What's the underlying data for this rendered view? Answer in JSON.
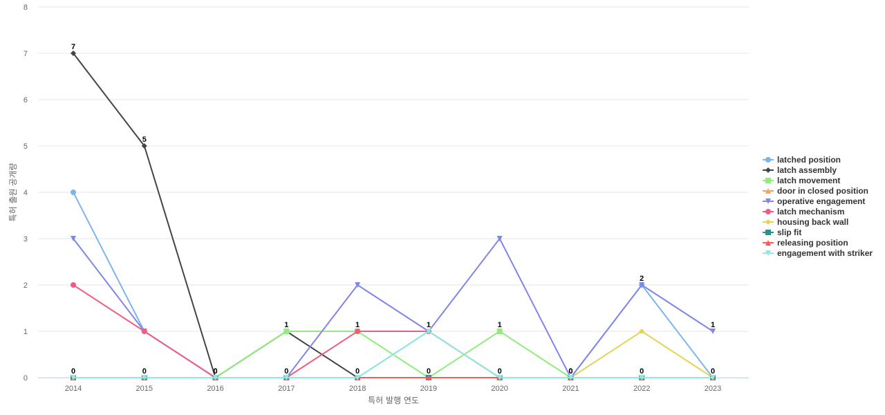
{
  "chart_data": {
    "type": "line",
    "title": "",
    "xlabel": "특허 발행 연도",
    "ylabel": "특허 출원 공개량",
    "x": [
      "2014",
      "2015",
      "2016",
      "2017",
      "2018",
      "2019",
      "2020",
      "2021",
      "2022",
      "2023"
    ],
    "ylim": [
      0,
      8
    ],
    "yticks": [
      0,
      1,
      2,
      3,
      4,
      5,
      6,
      7,
      8
    ],
    "grid": true,
    "legend_position": "right",
    "series": [
      {
        "name": "latched position",
        "color": "#7cb5ec",
        "marker": "circle",
        "values": [
          4,
          1,
          0,
          0,
          0,
          1,
          0,
          0,
          2,
          0
        ]
      },
      {
        "name": "latch assembly",
        "color": "#434348",
        "marker": "diamond",
        "values": [
          7,
          5,
          0,
          1,
          0,
          0,
          0,
          0,
          0,
          0
        ]
      },
      {
        "name": "latch movement",
        "color": "#90ed7d",
        "marker": "square",
        "values": [
          0,
          0,
          0,
          1,
          1,
          0,
          1,
          0,
          0,
          0
        ]
      },
      {
        "name": "door in closed position",
        "color": "#f7a35c",
        "marker": "triangle",
        "values": [
          0,
          0,
          0,
          0,
          0,
          0,
          0,
          0,
          0,
          0
        ]
      },
      {
        "name": "operative engagement",
        "color": "#8085e9",
        "marker": "triangle-down",
        "values": [
          3,
          1,
          0,
          0,
          2,
          1,
          3,
          0,
          2,
          1
        ]
      },
      {
        "name": "latch mechanism",
        "color": "#f15c80",
        "marker": "circle",
        "values": [
          2,
          1,
          0,
          0,
          1,
          1,
          0,
          0,
          0,
          0
        ]
      },
      {
        "name": "housing back wall",
        "color": "#e4d354",
        "marker": "diamond",
        "values": [
          0,
          0,
          0,
          0,
          0,
          0,
          0,
          0,
          1,
          0
        ]
      },
      {
        "name": "slip fit",
        "color": "#2b908f",
        "marker": "square",
        "values": [
          0,
          0,
          0,
          0,
          0,
          0,
          0,
          0,
          0,
          0
        ]
      },
      {
        "name": "releasing position",
        "color": "#f45b5b",
        "marker": "triangle",
        "values": [
          0,
          0,
          0,
          0,
          0,
          0,
          0,
          0,
          0,
          0
        ]
      },
      {
        "name": "engagement with striker",
        "color": "#91e8e1",
        "marker": "triangle-down",
        "values": [
          0,
          0,
          0,
          0,
          0,
          1,
          0,
          0,
          0,
          0
        ]
      }
    ],
    "data_labels": [
      7,
      5,
      0,
      1,
      1,
      1,
      1,
      0,
      2,
      1
    ]
  }
}
